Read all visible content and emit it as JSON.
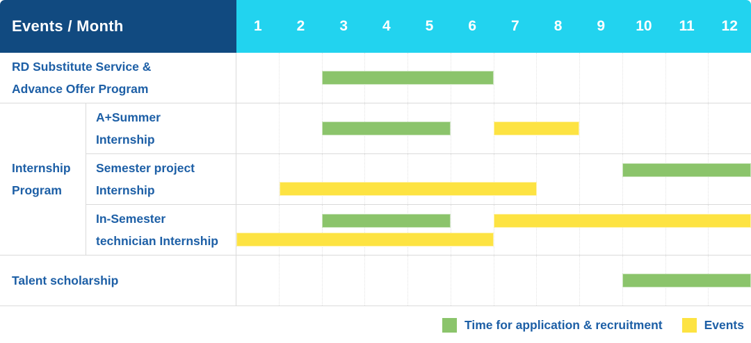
{
  "colors": {
    "header_bg": "#114a80",
    "months_bg": "#22d3ef",
    "label_text": "#1d5fa6",
    "green": "#8bc46b",
    "yellow": "#fde342"
  },
  "chart_data": {
    "type": "gantt",
    "title": "Events / Month",
    "x_categories": [
      "1",
      "2",
      "3",
      "4",
      "5",
      "6",
      "7",
      "8",
      "9",
      "10",
      "11",
      "12"
    ],
    "x_range": [
      1,
      12
    ],
    "group": {
      "label": "Internship\nProgram"
    },
    "tasks": [
      {
        "label": "RD Substitute Service &\nAdvance Offer Program",
        "bars": [
          {
            "type": "application",
            "color": "green",
            "start_month": 3,
            "end_month": 6,
            "level": "center"
          }
        ]
      },
      {
        "label": "A+Summer\nInternship",
        "bars": [
          {
            "type": "application",
            "color": "green",
            "start_month": 3,
            "end_month": 5,
            "level": "center"
          },
          {
            "type": "events",
            "color": "yellow",
            "start_month": 7,
            "end_month": 8,
            "level": "center"
          }
        ]
      },
      {
        "label": "Semester project\nInternship",
        "bars": [
          {
            "type": "application",
            "color": "green",
            "start_month": 10,
            "end_month": 12,
            "level": "upper"
          },
          {
            "type": "events",
            "color": "yellow",
            "start_month": 2,
            "end_month": 7,
            "level": "lower"
          }
        ]
      },
      {
        "label": "In-Semester\ntechnician Internship",
        "bars": [
          {
            "type": "application",
            "color": "green",
            "start_month": 3,
            "end_month": 5,
            "level": "upper"
          },
          {
            "type": "events",
            "color": "yellow",
            "start_month": 7,
            "end_month": 12,
            "level": "upper"
          },
          {
            "type": "events",
            "color": "yellow",
            "start_month": 1,
            "end_month": 6,
            "level": "lower"
          }
        ]
      },
      {
        "label": "Talent scholarship",
        "bars": [
          {
            "type": "application",
            "color": "green",
            "start_month": 10,
            "end_month": 12,
            "level": "center"
          }
        ]
      }
    ],
    "legend": [
      {
        "color": "green",
        "label": "Time for application & recruitment"
      },
      {
        "color": "yellow",
        "label": "Events"
      }
    ]
  }
}
